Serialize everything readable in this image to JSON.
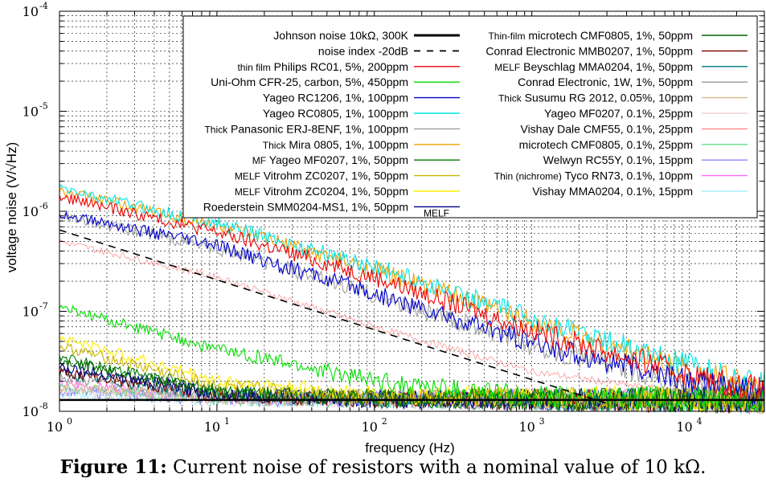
{
  "caption": {
    "label": "Figure 11:",
    "text": "Current noise of resistors with a nominal value of 10 kΩ."
  },
  "chart_data": {
    "type": "line",
    "xlabel": "frequency (Hz)",
    "ylabel": "voltage noise (V/√Hz)",
    "xscale": "log",
    "yscale": "log",
    "xlim": [
      1,
      30000
    ],
    "ylim": [
      1e-08,
      0.0001
    ],
    "x_ticks": [
      {
        "base": "10",
        "exp": "0",
        "value": 1
      },
      {
        "base": "10",
        "exp": "1",
        "value": 10
      },
      {
        "base": "10",
        "exp": "2",
        "value": 100
      },
      {
        "base": "10",
        "exp": "3",
        "value": 1000
      },
      {
        "base": "10",
        "exp": "4",
        "value": 10000
      }
    ],
    "y_ticks": [
      {
        "base": "10",
        "exp": "-8",
        "value": 1e-08
      },
      {
        "base": "10",
        "exp": "-7",
        "value": 1e-07
      },
      {
        "base": "10",
        "exp": "-6",
        "value": 1e-06
      },
      {
        "base": "10",
        "exp": "-5",
        "value": 1e-05
      },
      {
        "base": "10",
        "exp": "-4",
        "value": 0.0001
      }
    ],
    "grid": true,
    "legend_position": "top-right",
    "series": [
      {
        "prefix": "",
        "name": "Johnson noise 10kΩ, 300K",
        "color": "#000000",
        "style": "thick",
        "points": [
          [
            1,
            1.3e-08
          ],
          [
            30000,
            1.3e-08
          ]
        ]
      },
      {
        "prefix": "",
        "name": "noise index -20dB",
        "color": "#000000",
        "style": "dashed",
        "points": [
          [
            1,
            6.5e-07
          ],
          [
            3000,
            1.2e-08
          ]
        ]
      },
      {
        "prefix": "thin film",
        "name": "Philips RC01, 5%, 200ppm",
        "color": "#ee0000",
        "style": "noisy",
        "points": [
          [
            1,
            1.4e-06
          ],
          [
            10,
            6.2e-07
          ],
          [
            100,
            2.2e-07
          ],
          [
            1000,
            6.5e-08
          ],
          [
            10000,
            2.3e-08
          ],
          [
            30000,
            1.6e-08
          ]
        ]
      },
      {
        "prefix": "",
        "name": "Uni-Ohm CFR-25, carbon, 5%, 450ppm",
        "color": "#00dd00",
        "style": "noisy",
        "points": [
          [
            1,
            1.1e-07
          ],
          [
            10,
            4.2e-08
          ],
          [
            100,
            2e-08
          ],
          [
            1000,
            1.4e-08
          ],
          [
            30000,
            1.3e-08
          ]
        ]
      },
      {
        "prefix": "",
        "name": "Yageo RC1206, 1%, 100ppm",
        "color": "#0000cc",
        "style": "noisy",
        "points": [
          [
            1,
            9.5e-07
          ],
          [
            10,
            4.5e-07
          ],
          [
            100,
            1.5e-07
          ],
          [
            1000,
            4.8e-08
          ],
          [
            10000,
            2e-08
          ],
          [
            30000,
            1.5e-08
          ]
        ]
      },
      {
        "prefix": "",
        "name": "Yageo RC0805, 1%, 100ppm",
        "color": "#00e5e5",
        "style": "noisy",
        "points": [
          [
            1,
            1.7e-06
          ],
          [
            10,
            7.5e-07
          ],
          [
            100,
            2.8e-07
          ],
          [
            1000,
            8.5e-08
          ],
          [
            10000,
            2.8e-08
          ],
          [
            30000,
            1.8e-08
          ]
        ]
      },
      {
        "prefix": "Thick",
        "name": "Panasonic ERJ-8ENF, 1%, 100ppm",
        "color": "#a0a0a0",
        "style": "noisy",
        "points": [
          [
            1,
            9e-07
          ],
          [
            10,
            4.3e-07
          ],
          [
            100,
            1.45e-07
          ],
          [
            1000,
            4.6e-08
          ],
          [
            10000,
            1.9e-08
          ],
          [
            30000,
            1.5e-08
          ]
        ]
      },
      {
        "prefix": "Thick",
        "name": "Mira 0805, 1%, 100ppm",
        "color": "#f0a000",
        "style": "noisy",
        "points": [
          [
            1,
            1.6e-06
          ],
          [
            10,
            7.2e-07
          ],
          [
            100,
            2.6e-07
          ],
          [
            1000,
            8e-08
          ],
          [
            10000,
            2.6e-08
          ],
          [
            30000,
            1.7e-08
          ]
        ]
      },
      {
        "prefix": "MF",
        "name": "Yageo MF0207, 1%, 50ppm",
        "color": "#007700",
        "style": "noisy",
        "points": [
          [
            1,
            3.5e-08
          ],
          [
            10,
            1.6e-08
          ],
          [
            100,
            1.35e-08
          ],
          [
            30000,
            1.3e-08
          ]
        ]
      },
      {
        "prefix": "MELF",
        "name": "Vitrohm ZC0207, 1%, 50ppm",
        "color": "#c8b400",
        "style": "noisy",
        "points": [
          [
            1,
            4.5e-08
          ],
          [
            10,
            1.8e-08
          ],
          [
            100,
            1.4e-08
          ],
          [
            30000,
            1.3e-08
          ]
        ]
      },
      {
        "prefix": "MELF",
        "name": "Vitrohm ZC0204, 1%, 50ppm",
        "color": "#ffee00",
        "style": "noisy",
        "points": [
          [
            1,
            5.5e-08
          ],
          [
            10,
            2e-08
          ],
          [
            100,
            1.45e-08
          ],
          [
            30000,
            1.3e-08
          ]
        ]
      },
      {
        "prefix": "",
        "name": "Roederstein SMM0204-MS1, 1%, 50ppm",
        "color": "#000088",
        "style": "noisy",
        "suffix": "MELF",
        "points": [
          [
            1,
            2.8e-08
          ],
          [
            10,
            1.5e-08
          ],
          [
            100,
            1.32e-08
          ],
          [
            30000,
            1.3e-08
          ]
        ]
      },
      {
        "prefix": "Thin-film",
        "name": "microtech CMF0805, 1%, 50ppm",
        "color": "#006600",
        "style": "noisy",
        "points": [
          [
            1,
            3.2e-08
          ],
          [
            10,
            1.55e-08
          ],
          [
            100,
            1.33e-08
          ],
          [
            30000,
            1.3e-08
          ]
        ]
      },
      {
        "prefix": "",
        "name": "Conrad Electronic MMB0207, 1%, 50ppm",
        "color": "#770000",
        "style": "noisy",
        "points": [
          [
            1,
            2.5e-08
          ],
          [
            10,
            1.45e-08
          ],
          [
            100,
            1.32e-08
          ],
          [
            30000,
            1.3e-08
          ]
        ]
      },
      {
        "prefix": "MELF",
        "name": "Beyschlag MMA0204, 1%, 50ppm",
        "color": "#007777",
        "style": "noisy",
        "points": [
          [
            1,
            2.4e-08
          ],
          [
            10,
            1.45e-08
          ],
          [
            100,
            1.32e-08
          ],
          [
            30000,
            1.3e-08
          ]
        ]
      },
      {
        "prefix": "",
        "name": "Conrad Electronic, 1W, 1%, 50ppm",
        "color": "#999999",
        "style": "noisy",
        "points": [
          [
            1,
            2.2e-08
          ],
          [
            10,
            1.4e-08
          ],
          [
            100,
            1.32e-08
          ],
          [
            30000,
            1.3e-08
          ]
        ]
      },
      {
        "prefix": "Thick",
        "name": "Susumu RG 2012, 0.05%, 10ppm",
        "color": "#d8b888",
        "style": "noisy",
        "points": [
          [
            1,
            1.8e-08
          ],
          [
            10,
            1.35e-08
          ],
          [
            30000,
            1.3e-08
          ]
        ]
      },
      {
        "prefix": "",
        "name": "Yageo MF0207, 0.1%, 25ppm",
        "color": "#f0d0d0",
        "style": "noisy",
        "points": [
          [
            1,
            1.6e-08
          ],
          [
            10,
            1.33e-08
          ],
          [
            30000,
            1.3e-08
          ]
        ]
      },
      {
        "prefix": "",
        "name": "Vishay Dale CMF55, 0.1%, 25ppm",
        "color": "#ff8888",
        "style": "thin",
        "points": [
          [
            1,
            5e-07
          ],
          [
            10,
            2.2e-07
          ],
          [
            100,
            7e-08
          ],
          [
            1000,
            2.5e-08
          ],
          [
            10000,
            1.5e-08
          ],
          [
            30000,
            1.35e-08
          ]
        ]
      },
      {
        "prefix": "",
        "name": "microtech CMF0805, 0.1%, 25ppm",
        "color": "#66dd88",
        "style": "noisy",
        "points": [
          [
            1,
            1.7e-08
          ],
          [
            10,
            1.34e-08
          ],
          [
            30000,
            1.3e-08
          ]
        ]
      },
      {
        "prefix": "",
        "name": "Welwyn RC55Y, 0.1%, 15ppm",
        "color": "#8888ff",
        "style": "noisy",
        "points": [
          [
            1,
            1.6e-08
          ],
          [
            10,
            1.33e-08
          ],
          [
            30000,
            1.3e-08
          ]
        ]
      },
      {
        "prefix": "Thin (nichrome)",
        "name": "Tyco RN73, 0.1%, 10ppm",
        "color": "#ff66ff",
        "style": "noisy",
        "points": [
          [
            1,
            1.9e-08
          ],
          [
            10,
            1.36e-08
          ],
          [
            30000,
            1.3e-08
          ]
        ]
      },
      {
        "prefix": "",
        "name": "Vishay MMA0204, 0.1%, 15ppm",
        "color": "#aaeeff",
        "style": "noisy",
        "points": [
          [
            1,
            1.5e-08
          ],
          [
            10,
            1.32e-08
          ],
          [
            30000,
            1.3e-08
          ]
        ]
      }
    ]
  }
}
